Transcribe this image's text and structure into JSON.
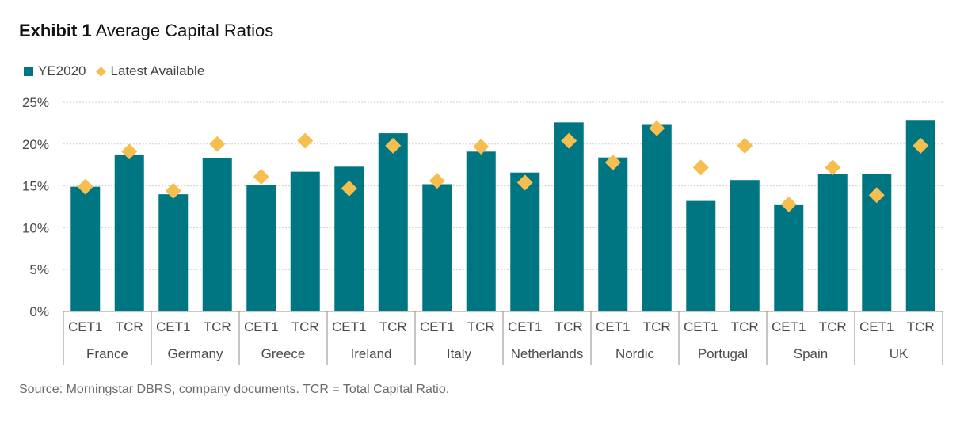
{
  "header": {
    "exhibit": "Exhibit 1",
    "title": "Average Capital Ratios"
  },
  "colors": {
    "bar": "#007683",
    "diamond": "#F6BE4F",
    "grid": "#cfcfcf",
    "axis": "#8c8c8c",
    "text": "#4a4a4a"
  },
  "chart_data": {
    "type": "bar",
    "ylim": [
      0,
      25
    ],
    "yticks": [
      "0%",
      "5%",
      "10%",
      "15%",
      "20%",
      "25%"
    ],
    "grid": true,
    "legend_position": "top-left",
    "groups": [
      "France",
      "Germany",
      "Greece",
      "Ireland",
      "Italy",
      "Netherlands",
      "Nordic",
      "Portugal",
      "Spain",
      "UK"
    ],
    "sub_categories": [
      "CET1",
      "TCR"
    ],
    "series": [
      {
        "name": "YE2020",
        "type": "bar",
        "values": [
          14.9,
          18.7,
          14.0,
          18.3,
          15.1,
          16.7,
          17.3,
          21.3,
          15.2,
          19.1,
          16.6,
          22.6,
          18.4,
          22.3,
          13.2,
          15.7,
          12.7,
          16.4,
          16.4,
          22.8
        ]
      },
      {
        "name": "Latest Available",
        "type": "scatter",
        "values": [
          14.9,
          19.1,
          14.4,
          20.0,
          16.1,
          20.4,
          14.7,
          19.8,
          15.6,
          19.7,
          15.4,
          20.4,
          17.8,
          21.9,
          17.2,
          19.8,
          12.8,
          17.2,
          13.9,
          19.8
        ]
      }
    ]
  },
  "footer": {
    "source": "Source: Morningstar DBRS, company documents. TCR = Total Capital Ratio."
  }
}
